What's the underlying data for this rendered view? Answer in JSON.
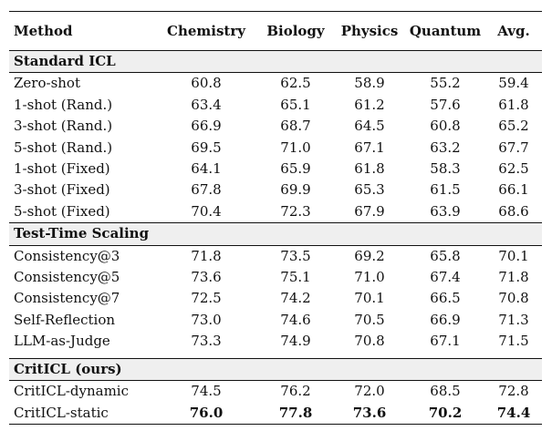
{
  "table": {
    "headers": [
      "Method",
      "Chemistry",
      "Biology",
      "Physics",
      "Quantum",
      "Avg."
    ],
    "sections": [
      {
        "title": "Standard ICL",
        "rows": [
          {
            "method": "Zero-shot",
            "values": [
              "60.8",
              "62.5",
              "58.9",
              "55.2",
              "59.4"
            ]
          },
          {
            "method": "1-shot (Rand.)",
            "values": [
              "63.4",
              "65.1",
              "61.2",
              "57.6",
              "61.8"
            ]
          },
          {
            "method": "3-shot (Rand.)",
            "values": [
              "66.9",
              "68.7",
              "64.5",
              "60.8",
              "65.2"
            ]
          },
          {
            "method": "5-shot (Rand.)",
            "values": [
              "69.5",
              "71.0",
              "67.1",
              "63.2",
              "67.7"
            ]
          },
          {
            "method": "1-shot (Fixed)",
            "values": [
              "64.1",
              "65.9",
              "61.8",
              "58.3",
              "62.5"
            ]
          },
          {
            "method": "3-shot (Fixed)",
            "values": [
              "67.8",
              "69.9",
              "65.3",
              "61.5",
              "66.1"
            ]
          },
          {
            "method": "5-shot (Fixed)",
            "values": [
              "70.4",
              "72.3",
              "67.9",
              "63.9",
              "68.6"
            ]
          }
        ]
      },
      {
        "title": "Test-Time Scaling",
        "rows": [
          {
            "method": "Consistency@3",
            "values": [
              "71.8",
              "73.5",
              "69.2",
              "65.8",
              "70.1"
            ]
          },
          {
            "method": "Consistency@5",
            "values": [
              "73.6",
              "75.1",
              "71.0",
              "67.4",
              "71.8"
            ]
          },
          {
            "method": "Consistency@7",
            "values": [
              "72.5",
              "74.2",
              "70.1",
              "66.5",
              "70.8"
            ]
          },
          {
            "method": "Self-Reflection",
            "values": [
              "73.0",
              "74.6",
              "70.5",
              "66.9",
              "71.3"
            ]
          },
          {
            "method": "LLM-as-Judge",
            "values": [
              "73.3",
              "74.9",
              "70.8",
              "67.1",
              "71.5"
            ]
          }
        ]
      },
      {
        "title": "CritICL (ours)",
        "rows": [
          {
            "method": "CritICL-dynamic",
            "values": [
              "74.5",
              "76.2",
              "72.0",
              "68.5",
              "72.8"
            ]
          },
          {
            "method": "CritICL-static",
            "values": [
              "76.0",
              "77.8",
              "73.6",
              "70.2",
              "74.4"
            ],
            "best": true
          }
        ]
      }
    ]
  }
}
